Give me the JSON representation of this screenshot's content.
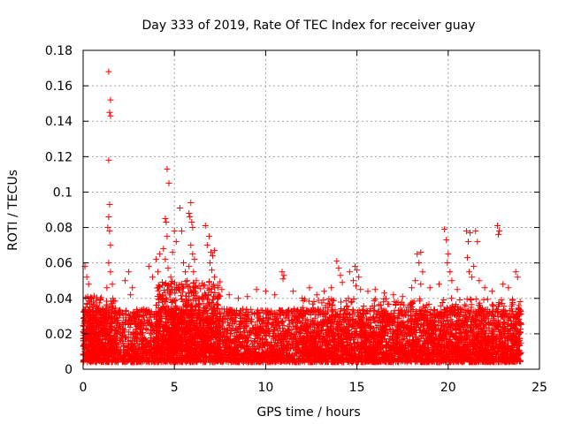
{
  "chart_data": {
    "type": "scatter",
    "title": "Day 333 of 2019, Rate Of TEC Index for receiver guay",
    "xlabel": "GPS time / hours",
    "ylabel": "ROTI / TECUs",
    "xlim": [
      0,
      25
    ],
    "ylim": [
      0,
      0.18
    ],
    "xticks": [
      0,
      5,
      10,
      15,
      20,
      25
    ],
    "xtick_labels": [
      "0",
      "5",
      "10",
      "15",
      "20",
      "25"
    ],
    "yticks": [
      0,
      0.02,
      0.04,
      0.06,
      0.08,
      0.1,
      0.12,
      0.14,
      0.16,
      0.18
    ],
    "ytick_labels": [
      "0",
      "0.02",
      "0.04",
      "0.06",
      "0.08",
      "0.1",
      "0.12",
      "0.14",
      "0.16",
      "0.18"
    ],
    "grid": true,
    "marker": "plus",
    "series": [
      {
        "name": "ROTI",
        "color": "#ff0000",
        "points": [
          [
            1.4,
            0.168
          ],
          [
            1.5,
            0.152
          ],
          [
            1.45,
            0.145
          ],
          [
            1.5,
            0.143
          ],
          [
            1.4,
            0.118
          ],
          [
            1.45,
            0.093
          ],
          [
            1.4,
            0.086
          ],
          [
            1.35,
            0.08
          ],
          [
            1.45,
            0.078
          ],
          [
            1.5,
            0.07
          ],
          [
            1.4,
            0.06
          ],
          [
            1.5,
            0.055
          ],
          [
            1.6,
            0.048
          ],
          [
            1.3,
            0.046
          ],
          [
            0.1,
            0.058
          ],
          [
            0.2,
            0.052
          ],
          [
            0.3,
            0.048
          ],
          [
            0.25,
            0.041
          ],
          [
            0.15,
            0.035
          ],
          [
            2.5,
            0.055
          ],
          [
            2.3,
            0.05
          ],
          [
            2.7,
            0.046
          ],
          [
            2.6,
            0.042
          ],
          [
            3.6,
            0.058
          ],
          [
            3.8,
            0.052
          ],
          [
            4.0,
            0.062
          ],
          [
            4.1,
            0.055
          ],
          [
            4.2,
            0.065
          ],
          [
            4.5,
            0.085
          ],
          [
            4.6,
            0.113
          ],
          [
            4.7,
            0.105
          ],
          [
            4.55,
            0.083
          ],
          [
            4.6,
            0.075
          ],
          [
            4.4,
            0.068
          ],
          [
            4.5,
            0.062
          ],
          [
            4.65,
            0.057
          ],
          [
            4.8,
            0.052
          ],
          [
            4.9,
            0.066
          ],
          [
            5.0,
            0.078
          ],
          [
            5.1,
            0.072
          ],
          [
            5.3,
            0.091
          ],
          [
            5.4,
            0.078
          ],
          [
            5.5,
            0.06
          ],
          [
            5.6,
            0.055
          ],
          [
            5.7,
            0.05
          ],
          [
            5.8,
            0.088
          ],
          [
            5.9,
            0.094
          ],
          [
            5.85,
            0.086
          ],
          [
            5.95,
            0.083
          ],
          [
            6.0,
            0.08
          ],
          [
            5.9,
            0.07
          ],
          [
            6.0,
            0.065
          ],
          [
            6.1,
            0.062
          ],
          [
            5.8,
            0.058
          ],
          [
            6.05,
            0.055
          ],
          [
            6.2,
            0.05
          ],
          [
            6.7,
            0.081
          ],
          [
            6.9,
            0.075
          ],
          [
            6.8,
            0.07
          ],
          [
            7.0,
            0.066
          ],
          [
            7.1,
            0.064
          ],
          [
            7.2,
            0.067
          ],
          [
            6.95,
            0.06
          ],
          [
            7.05,
            0.056
          ],
          [
            7.2,
            0.052
          ],
          [
            6.9,
            0.049
          ],
          [
            7.6,
            0.045
          ],
          [
            8.0,
            0.042
          ],
          [
            8.5,
            0.04
          ],
          [
            9.0,
            0.041
          ],
          [
            9.5,
            0.045
          ],
          [
            10.0,
            0.044
          ],
          [
            10.5,
            0.042
          ],
          [
            10.9,
            0.055
          ],
          [
            11.0,
            0.053
          ],
          [
            10.95,
            0.051
          ],
          [
            11.5,
            0.044
          ],
          [
            12.0,
            0.04
          ],
          [
            12.4,
            0.046
          ],
          [
            12.8,
            0.042
          ],
          [
            13.2,
            0.044
          ],
          [
            13.6,
            0.046
          ],
          [
            13.9,
            0.061
          ],
          [
            14.0,
            0.057
          ],
          [
            14.1,
            0.053
          ],
          [
            14.2,
            0.049
          ],
          [
            14.6,
            0.055
          ],
          [
            14.8,
            0.05
          ],
          [
            14.9,
            0.058
          ],
          [
            15.0,
            0.056
          ],
          [
            15.1,
            0.052
          ],
          [
            14.95,
            0.047
          ],
          [
            15.2,
            0.045
          ],
          [
            15.6,
            0.044
          ],
          [
            16.0,
            0.045
          ],
          [
            16.5,
            0.043
          ],
          [
            17.0,
            0.042
          ],
          [
            17.5,
            0.041
          ],
          [
            18.0,
            0.046
          ],
          [
            18.3,
            0.065
          ],
          [
            18.5,
            0.066
          ],
          [
            18.4,
            0.06
          ],
          [
            18.6,
            0.055
          ],
          [
            18.2,
            0.05
          ],
          [
            18.5,
            0.048
          ],
          [
            19.0,
            0.046
          ],
          [
            19.5,
            0.048
          ],
          [
            19.8,
            0.079
          ],
          [
            19.9,
            0.073
          ],
          [
            20.0,
            0.065
          ],
          [
            19.95,
            0.06
          ],
          [
            20.1,
            0.055
          ],
          [
            20.2,
            0.05
          ],
          [
            20.5,
            0.045
          ],
          [
            21.0,
            0.078
          ],
          [
            21.1,
            0.072
          ],
          [
            21.2,
            0.077
          ],
          [
            21.05,
            0.063
          ],
          [
            21.15,
            0.055
          ],
          [
            21.3,
            0.052
          ],
          [
            21.5,
            0.078
          ],
          [
            21.6,
            0.072
          ],
          [
            21.4,
            0.058
          ],
          [
            21.7,
            0.05
          ],
          [
            22.0,
            0.046
          ],
          [
            22.4,
            0.044
          ],
          [
            22.7,
            0.081
          ],
          [
            22.8,
            0.078
          ],
          [
            22.75,
            0.076
          ],
          [
            23.0,
            0.048
          ],
          [
            23.3,
            0.046
          ],
          [
            23.7,
            0.055
          ],
          [
            23.8,
            0.052
          ]
        ],
        "dense_bands": [
          {
            "x_range": [
              0.0,
              24.0
            ],
            "y_min": 0.004,
            "y_max": 0.034,
            "count": 5200
          },
          {
            "x_range": [
              4.0,
              7.5
            ],
            "y_min": 0.01,
            "y_max": 0.05,
            "count": 700
          },
          {
            "x_range": [
              0.0,
              1.8
            ],
            "y_min": 0.008,
            "y_max": 0.042,
            "count": 300
          },
          {
            "x_range": [
              12.0,
              24.0
            ],
            "y_min": 0.008,
            "y_max": 0.04,
            "count": 900
          }
        ]
      }
    ]
  }
}
